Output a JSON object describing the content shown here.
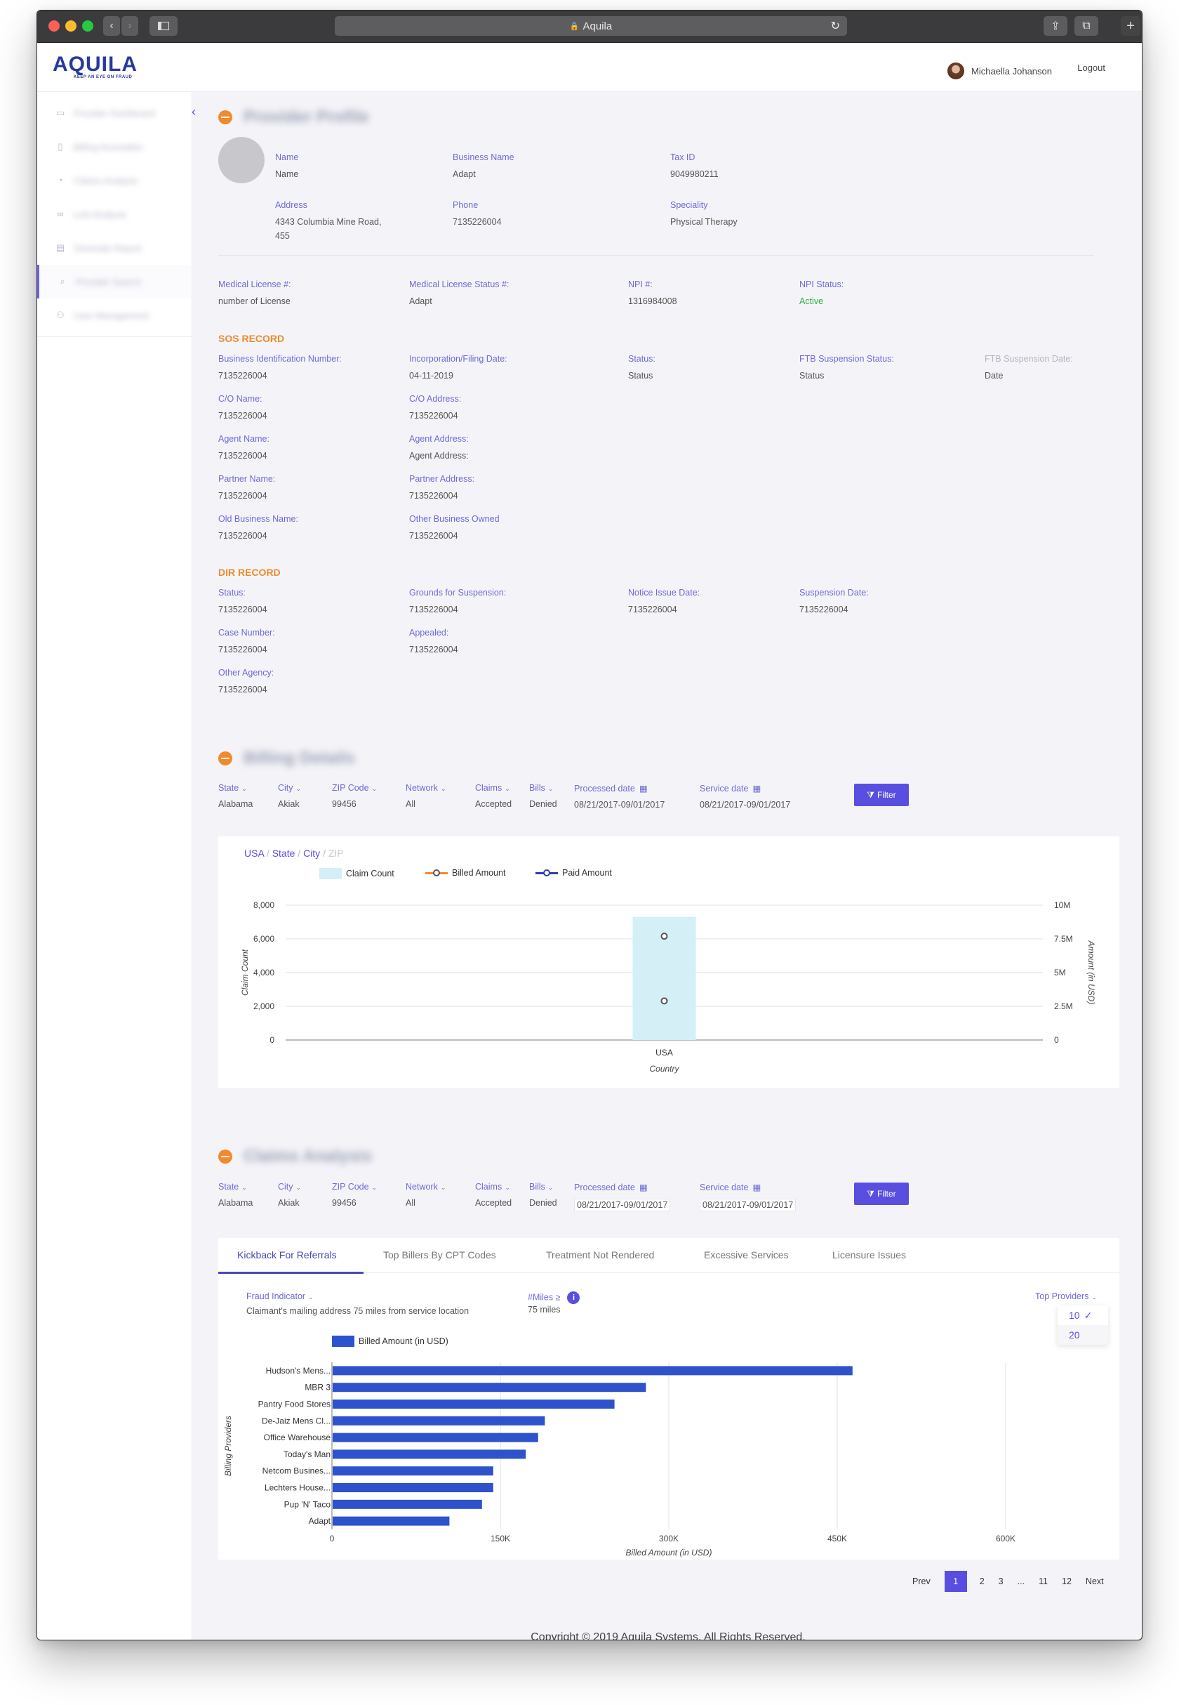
{
  "browser": {
    "address": "Aquila",
    "lock_icon": "lock-icon",
    "reload_icon": "reload-icon"
  },
  "app": {
    "logo": "AQUILA",
    "tagline": "KEEP AN EYE ON FRAUD",
    "user_name": "Michaella Johanson",
    "logout": "Logout",
    "footer": "Copyright © 2019 Aquila Systems. All Rights Reserved."
  },
  "sidebar": {
    "items": [
      {
        "label": "Provider Dashboard",
        "icon": "monitor-icon"
      },
      {
        "label": "Billing Anomalies",
        "icon": "clipboard-icon"
      },
      {
        "label": "Claims Analysis",
        "icon": "pie-chart-icon"
      },
      {
        "label": "Link Analysis",
        "icon": "link-icon"
      },
      {
        "label": "Generate Report",
        "icon": "document-icon"
      },
      {
        "label": "Provider Search",
        "icon": "search-icon"
      },
      {
        "label": "User Management",
        "icon": "user-icon"
      }
    ]
  },
  "profile": {
    "section_title": "Provider Profile",
    "name_label": "Name",
    "name_value": "Name",
    "business_label": "Business Name",
    "business_value": "Adapt",
    "taxid_label": "Tax ID",
    "taxid_value": "9049980211",
    "address_label": "Address",
    "address_line1": "4343 Columbia Mine Road,",
    "address_line2": "455",
    "phone_label": "Phone",
    "phone_value": "7135226004",
    "speciality_label": "Speciality",
    "speciality_value": "Physical Therapy",
    "license_label": "Medical License #:",
    "license_value": "number of License",
    "license_status_label": "Medical License Status #:",
    "license_status_value": "Adapt",
    "npi_label": "NPI #:",
    "npi_value": "1316984008",
    "npi_status_label": "NPI Status:",
    "npi_status_value": "Active"
  },
  "sos": {
    "title": "SOS RECORD",
    "fields": [
      {
        "label": "Business Identification Number:",
        "value": "7135226004"
      },
      {
        "label": "Incorporation/Filing Date:",
        "value": "04-11-2019"
      },
      {
        "label": "Status:",
        "value": "Status"
      },
      {
        "label": "FTB Suspension Status:",
        "value": "Status"
      },
      {
        "label": "FTB Suspension Date:",
        "value": "Date"
      },
      {
        "label": "C/O Name:",
        "value": "7135226004"
      },
      {
        "label": "C/O Address:",
        "value": "7135226004"
      },
      {
        "label": "Agent Name:",
        "value": "7135226004"
      },
      {
        "label": "Agent Address:",
        "value": "Agent Address:"
      },
      {
        "label": "Partner Name:",
        "value": "7135226004"
      },
      {
        "label": "Partner Address:",
        "value": "7135226004"
      },
      {
        "label": "Old Business Name:",
        "value": "7135226004"
      },
      {
        "label": "Other Business Owned",
        "value": "7135226004"
      }
    ]
  },
  "dir": {
    "title": "DIR RECORD",
    "fields": [
      {
        "label": "Status:",
        "value": "7135226004"
      },
      {
        "label": "Grounds for Suspension:",
        "value": "7135226004"
      },
      {
        "label": "Notice Issue Date:",
        "value": "7135226004"
      },
      {
        "label": "Suspension Date:",
        "value": "7135226004"
      },
      {
        "label": "Case Number:",
        "value": "7135226004"
      },
      {
        "label": "Appealed:",
        "value": "7135226004"
      },
      {
        "label": "Other Agency:",
        "value": "7135226004"
      }
    ]
  },
  "billing": {
    "section_title": "Billing Details",
    "filters": [
      {
        "label": "State",
        "value": "Alabama"
      },
      {
        "label": "City",
        "value": "Akiak"
      },
      {
        "label": "ZIP Code",
        "value": "99456"
      },
      {
        "label": "Network",
        "value": "All"
      },
      {
        "label": "Claims",
        "value": "Accepted"
      },
      {
        "label": "Bills",
        "value": "Denied"
      },
      {
        "label": "Processed date",
        "value": "08/21/2017-09/01/2017"
      },
      {
        "label": "Service date",
        "value": "08/21/2017-09/01/2017"
      }
    ],
    "filter_button": "Filter",
    "breadcrumb": [
      "USA",
      "State",
      "City",
      "ZIP"
    ]
  },
  "claims": {
    "section_title": "Claims Analysis",
    "filters": [
      {
        "label": "State",
        "value": "Alabama"
      },
      {
        "label": "City",
        "value": "Akiak"
      },
      {
        "label": "ZIP Code",
        "value": "99456"
      },
      {
        "label": "Network",
        "value": "All"
      },
      {
        "label": "Claims",
        "value": "Accepted"
      },
      {
        "label": "Bills",
        "value": "Denied"
      },
      {
        "label": "Processed date",
        "value": "08/21/2017-09/01/2017"
      },
      {
        "label": "Service date",
        "value": "08/21/2017-09/01/2017"
      }
    ],
    "filter_button": "Filter",
    "tabs": [
      "Kickback For Referrals",
      "Top Billers By  CPT Codes",
      "Treatment Not Rendered",
      "Excessive Services",
      "Licensure Issues"
    ],
    "fraud_label": "Fraud Indicator",
    "fraud_desc": "Claimant's mailing address 75 miles from service location",
    "miles_label": "#Miles ≥",
    "miles_value": "75 miles",
    "top_label": "Top Providers",
    "top_options": [
      "10",
      "20"
    ],
    "pager": {
      "prev": "Prev",
      "pages": [
        "1",
        "2",
        "3",
        "...",
        "11",
        "12"
      ],
      "next": "Next"
    }
  },
  "chart_data": [
    {
      "type": "bar",
      "categories": [
        "USA"
      ],
      "xlabel": "Country",
      "series": [
        {
          "name": "Claim Count",
          "axis": "left",
          "values": [
            7300
          ],
          "color": "#d4eff5"
        },
        {
          "name": "Billed Amount",
          "axis": "right",
          "values": [
            7700000
          ],
          "color": "#f08a2c"
        },
        {
          "name": "Paid Amount",
          "axis": "right",
          "values": [
            2900000
          ],
          "color": "#2c3ea8"
        }
      ],
      "ylabel_left": "Claim Count",
      "ylabel_right": "Amount (in USD)",
      "ylim_left": [
        0,
        8000
      ],
      "ylim_right": [
        0,
        10000000
      ],
      "left_ticks": [
        "0",
        "2,000",
        "4,000",
        "6,000",
        "8,000"
      ],
      "right_ticks": [
        "0",
        "2.5M",
        "5M",
        "7.5M",
        "10M"
      ],
      "grid": true,
      "legend": "top-left"
    },
    {
      "type": "bar",
      "orientation": "horizontal",
      "categories": [
        "Hudson's Mens...",
        "MBR 3",
        "Pantry Food Stores",
        "De-Jaiz Mens Cl...",
        "Office Warehouse",
        "Today's Man",
        "Netcom Busines...",
        "Lechters House...",
        "Pup 'N' Taco",
        "Adapt"
      ],
      "series": [
        {
          "name": "Billed Amount (in USD)",
          "values": [
            463000,
            279000,
            251000,
            189000,
            183000,
            172000,
            143000,
            143000,
            133000,
            104000
          ],
          "color": "#2e52cc"
        }
      ],
      "xlabel": "Billed Amount (in USD)",
      "ylabel": "Billing Providers",
      "xlim": [
        0,
        600000
      ],
      "x_ticks": [
        "0",
        "150K",
        "300K",
        "450K",
        "600K"
      ],
      "grid": true,
      "legend": "top-left"
    }
  ]
}
